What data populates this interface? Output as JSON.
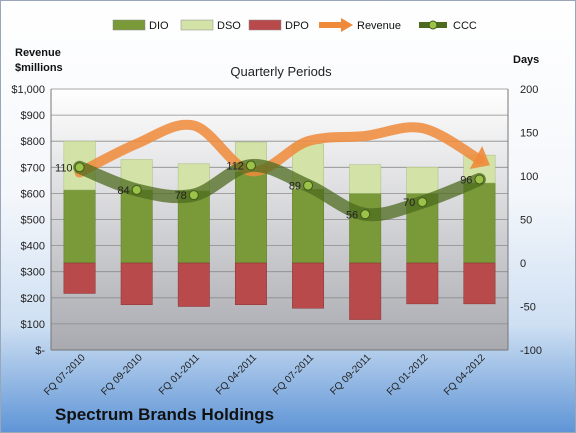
{
  "chart_data": {
    "type": "bar",
    "title": "Quarterly Periods",
    "categories": [
      "FQ 07-2010",
      "FQ 09-2010",
      "FQ 01-2011",
      "FQ 04-2011",
      "FQ 07-2011",
      "FQ 09-2011",
      "FQ 01-2012",
      "FQ 04-2012"
    ],
    "y_left": {
      "label_line1": "Revenue",
      "label_line2": "$millions",
      "range": [
        0,
        1000
      ],
      "ticks": [
        0,
        100,
        200,
        300,
        400,
        500,
        600,
        700,
        800,
        900,
        1000
      ],
      "tick_labels": [
        "$-",
        "$100",
        "$200",
        "$300",
        "$400",
        "$500",
        "$600",
        "$700",
        "$800",
        "$900",
        "$1,000"
      ]
    },
    "y_right": {
      "label": "Days",
      "range": [
        -100,
        200
      ],
      "ticks": [
        -100,
        -50,
        0,
        50,
        100,
        150,
        200
      ]
    },
    "series": [
      {
        "name": "DIO",
        "axis": "right",
        "color": "#7a9a3a",
        "values": [
          84,
          84,
          83,
          105,
          85,
          80,
          80,
          92
        ]
      },
      {
        "name": "DSO",
        "axis": "right",
        "color": "#d3e3a8",
        "values": [
          56,
          35,
          31,
          34,
          52,
          33,
          30,
          32
        ]
      },
      {
        "name": "DPO",
        "axis": "right",
        "color": "#b84a4b",
        "values": [
          -35,
          -48,
          -50,
          -48,
          -52,
          -65,
          -47,
          -47
        ]
      },
      {
        "name": "Revenue",
        "axis": "left",
        "color": "#ef8a3a",
        "values": [
          680,
          790,
          860,
          685,
          800,
          820,
          850,
          730
        ]
      },
      {
        "name": "CCC",
        "axis": "right",
        "color": "#4d6b1f",
        "values": [
          110,
          84,
          78,
          112,
          89,
          56,
          70,
          96
        ]
      }
    ],
    "data_labels": [
      "110",
      "84",
      "78",
      "112",
      "89",
      "56",
      "70",
      "96"
    ],
    "legend": {
      "position": "top",
      "items": [
        "DIO",
        "DSO",
        "DPO",
        "Revenue",
        "CCC"
      ]
    },
    "grid": true
  },
  "brand": "Spectrum Brands Holdings"
}
